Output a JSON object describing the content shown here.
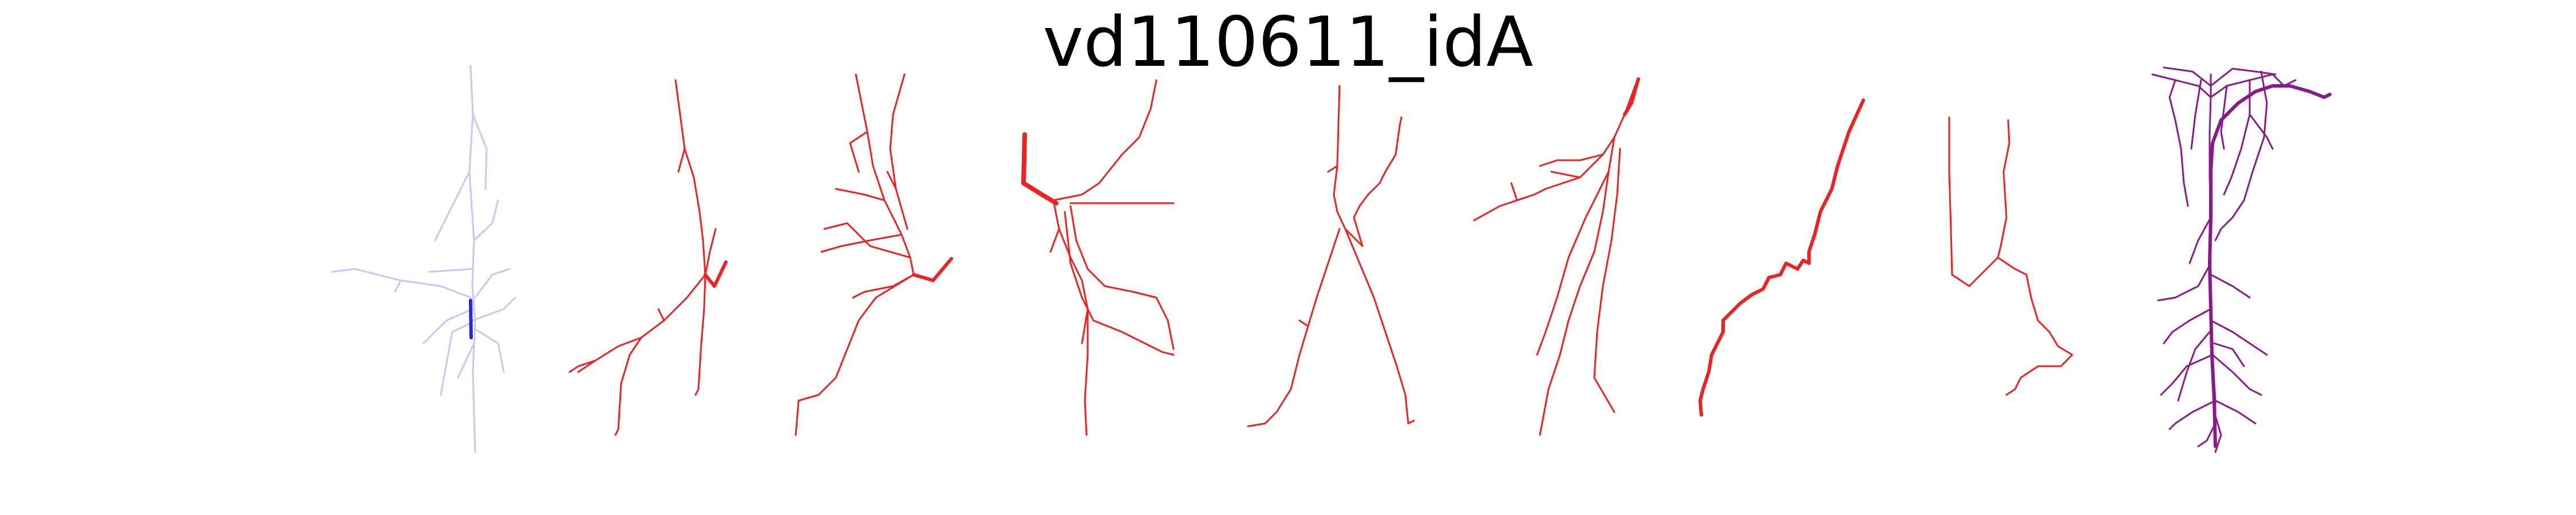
{
  "title": "vd110611_idA",
  "panels": [
    {
      "id": "overview",
      "color": "#b8bff5",
      "highlight": "#2a2ad6"
    },
    {
      "id": "red-1",
      "color": "#ee2222"
    },
    {
      "id": "red-2",
      "color": "#ee2222"
    },
    {
      "id": "red-3",
      "color": "#ee2222"
    },
    {
      "id": "red-4",
      "color": "#ee2222"
    },
    {
      "id": "red-5",
      "color": "#ee2222"
    },
    {
      "id": "red-6",
      "color": "#ee2222"
    },
    {
      "id": "red-7",
      "color": "#ee2222"
    },
    {
      "id": "purple",
      "color": "#8a1a8a"
    }
  ]
}
